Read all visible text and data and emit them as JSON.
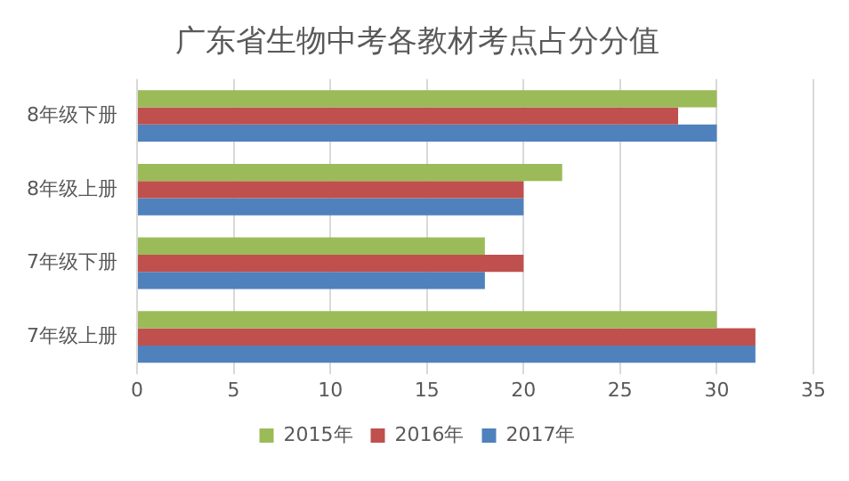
{
  "chart_data": {
    "type": "bar",
    "orientation": "horizontal",
    "title": "广东省生物中考各教材考点占分分值",
    "categories": [
      "8年级下册",
      "8年级上册",
      "7年级下册",
      "7年级上册"
    ],
    "series": [
      {
        "name": "2015年",
        "color": "#9bbb59",
        "values": [
          30,
          22,
          18,
          30
        ]
      },
      {
        "name": "2016年",
        "color": "#c0504d",
        "values": [
          28,
          20,
          20,
          32
        ]
      },
      {
        "name": "2017年",
        "color": "#4f81bd",
        "values": [
          30,
          20,
          18,
          32
        ]
      }
    ],
    "xlim": [
      0,
      35
    ],
    "xticks": [
      0,
      5,
      10,
      15,
      20,
      25,
      30,
      35
    ],
    "grid": "x",
    "legend": "bottom"
  }
}
